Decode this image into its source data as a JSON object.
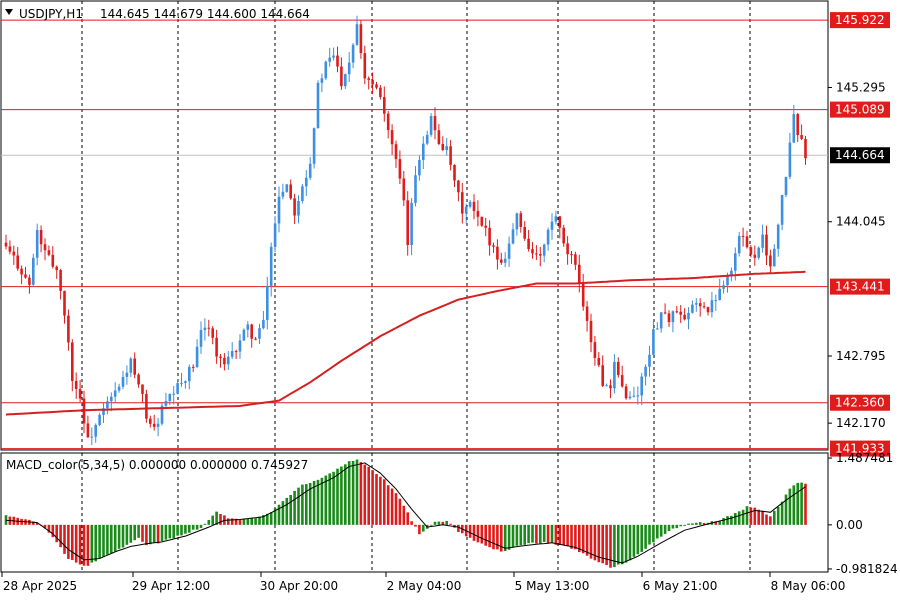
{
  "header": {
    "symbol": "USDJPY,H1",
    "ohlc": "144.645 144.679 144.600 144.664"
  },
  "indicator": {
    "label": "MACD_color(5,34,5) 0.000000 0.000000 0.745927"
  },
  "colors": {
    "bull_candle": "#3d8fe0",
    "bear_candle": "#e01b1b",
    "ma_line": "#d42020",
    "hline": "#e01b1b",
    "hist_up": "#1a8a1a",
    "hist_down": "#e01b1b",
    "signal_line": "#000000",
    "grid": "#000000"
  },
  "chart_data": [
    {
      "type": "candlestick",
      "symbol": "USDJPY",
      "timeframe": "H1",
      "ylim": [
        141.92,
        146.1
      ],
      "price_ticks": [
        "145.295",
        "144.045",
        "142.795",
        "142.170"
      ],
      "price_tags": [
        {
          "value": 145.922,
          "label": "145.922",
          "style": "red"
        },
        {
          "value": 145.089,
          "label": "145.089",
          "style": "red"
        },
        {
          "value": 144.664,
          "label": "144.664",
          "style": "current"
        },
        {
          "value": 143.441,
          "label": "143.441",
          "style": "red"
        },
        {
          "value": 142.36,
          "label": "142.360",
          "style": "red"
        },
        {
          "value": 141.933,
          "label": "141.933",
          "style": "red"
        }
      ],
      "horizontal_lines": [
        145.922,
        145.089,
        143.441,
        142.36,
        141.933
      ],
      "current_price": 144.664,
      "time_labels": [
        "28 Apr 2025",
        "29 Apr 12:00",
        "30 Apr 20:00",
        "2 May 04:00",
        "5 May 13:00",
        "6 May 21:00",
        "8 May 06:00"
      ],
      "grid": "vertical dashed",
      "close_path": [
        [
          0,
          143.8
        ],
        [
          3,
          143.65
        ],
        [
          6,
          143.45
        ],
        [
          8,
          143.95
        ],
        [
          10,
          143.75
        ],
        [
          13,
          143.6
        ],
        [
          15,
          143.2
        ],
        [
          17,
          142.6
        ],
        [
          19,
          142.4
        ],
        [
          21,
          142.0
        ],
        [
          23,
          142.15
        ],
        [
          26,
          142.35
        ],
        [
          29,
          142.5
        ],
        [
          32,
          142.75
        ],
        [
          33,
          142.6
        ],
        [
          35,
          142.4
        ],
        [
          36,
          142.25
        ],
        [
          38,
          142.1
        ],
        [
          40,
          142.3
        ],
        [
          42,
          142.4
        ],
        [
          44,
          142.5
        ],
        [
          46,
          142.6
        ],
        [
          48,
          142.7
        ],
        [
          50,
          143.0
        ],
        [
          52,
          143.1
        ],
        [
          54,
          142.8
        ],
        [
          56,
          142.7
        ],
        [
          58,
          142.8
        ],
        [
          60,
          142.95
        ],
        [
          62,
          143.05
        ],
        [
          64,
          142.95
        ],
        [
          66,
          143.1
        ],
        [
          68,
          143.8
        ],
        [
          70,
          144.3
        ],
        [
          72,
          144.4
        ],
        [
          74,
          144.15
        ],
        [
          76,
          144.4
        ],
        [
          78,
          144.6
        ],
        [
          80,
          145.3
        ],
        [
          82,
          145.5
        ],
        [
          84,
          145.6
        ],
        [
          86,
          145.35
        ],
        [
          88,
          145.55
        ],
        [
          90,
          145.9
        ],
        [
          92,
          145.4
        ],
        [
          94,
          145.35
        ],
        [
          96,
          145.25
        ],
        [
          98,
          144.9
        ],
        [
          100,
          144.6
        ],
        [
          102,
          144.2
        ],
        [
          103,
          143.85
        ],
        [
          105,
          144.5
        ],
        [
          107,
          144.8
        ],
        [
          109,
          145.0
        ],
        [
          111,
          144.8
        ],
        [
          113,
          144.7
        ],
        [
          115,
          144.4
        ],
        [
          117,
          144.15
        ],
        [
          119,
          144.2
        ],
        [
          121,
          144.05
        ],
        [
          123,
          143.95
        ],
        [
          125,
          143.8
        ],
        [
          127,
          143.65
        ],
        [
          129,
          143.85
        ],
        [
          131,
          144.1
        ],
        [
          133,
          143.9
        ],
        [
          135,
          143.75
        ],
        [
          137,
          143.7
        ],
        [
          139,
          143.95
        ],
        [
          141,
          144.1
        ],
        [
          143,
          143.8
        ],
        [
          145,
          143.7
        ],
        [
          147,
          143.5
        ],
        [
          149,
          143.1
        ],
        [
          151,
          142.8
        ],
        [
          153,
          142.55
        ],
        [
          155,
          142.45
        ],
        [
          156,
          142.7
        ],
        [
          158,
          142.5
        ],
        [
          160,
          142.4
        ],
        [
          162,
          142.45
        ],
        [
          164,
          142.7
        ],
        [
          166,
          143.0
        ],
        [
          168,
          143.2
        ],
        [
          170,
          143.15
        ],
        [
          172,
          143.2
        ],
        [
          174,
          143.1
        ],
        [
          176,
          143.25
        ],
        [
          178,
          143.3
        ],
        [
          180,
          143.2
        ],
        [
          182,
          143.35
        ],
        [
          184,
          143.5
        ],
        [
          186,
          143.6
        ],
        [
          188,
          143.9
        ],
        [
          190,
          143.85
        ],
        [
          192,
          143.7
        ],
        [
          194,
          143.95
        ],
        [
          196,
          143.6
        ],
        [
          198,
          144.0
        ],
        [
          200,
          144.5
        ],
        [
          202,
          145.0
        ],
        [
          204,
          144.8
        ],
        [
          205,
          144.664
        ]
      ],
      "ma_path": [
        [
          0,
          142.25
        ],
        [
          20,
          142.29
        ],
        [
          40,
          142.31
        ],
        [
          60,
          142.33
        ],
        [
          70,
          142.38
        ],
        [
          78,
          142.55
        ],
        [
          86,
          142.75
        ],
        [
          96,
          142.98
        ],
        [
          106,
          143.17
        ],
        [
          116,
          143.32
        ],
        [
          126,
          143.4
        ],
        [
          136,
          143.47
        ],
        [
          146,
          143.47
        ],
        [
          160,
          143.5
        ],
        [
          176,
          143.52
        ],
        [
          192,
          143.56
        ],
        [
          206,
          143.58
        ]
      ]
    },
    {
      "type": "histogram",
      "name": "MACD_color(5,34,5)",
      "values_shown": [
        "0.000000",
        "0.000000",
        "0.745927"
      ],
      "ylim": [
        -1.05,
        1.6
      ],
      "ticks": [
        "1.487481",
        "0.00",
        "-0.981824"
      ],
      "hist_path": [
        [
          0,
          0.2
        ],
        [
          4,
          0.15
        ],
        [
          8,
          0.05
        ],
        [
          10,
          -0.05
        ],
        [
          13,
          -0.4
        ],
        [
          16,
          -0.75
        ],
        [
          19,
          -0.88
        ],
        [
          21,
          -0.9
        ],
        [
          24,
          -0.75
        ],
        [
          28,
          -0.6
        ],
        [
          32,
          -0.4
        ],
        [
          34,
          -0.3
        ],
        [
          36,
          -0.45
        ],
        [
          39,
          -0.4
        ],
        [
          42,
          -0.32
        ],
        [
          46,
          -0.2
        ],
        [
          50,
          -0.05
        ],
        [
          54,
          0.28
        ],
        [
          57,
          0.15
        ],
        [
          60,
          0.1
        ],
        [
          64,
          0.15
        ],
        [
          68,
          0.3
        ],
        [
          72,
          0.6
        ],
        [
          76,
          0.9
        ],
        [
          80,
          1.0
        ],
        [
          84,
          1.2
        ],
        [
          88,
          1.4
        ],
        [
          90,
          1.45
        ],
        [
          93,
          1.3
        ],
        [
          97,
          1.0
        ],
        [
          101,
          0.6
        ],
        [
          104,
          0.1
        ],
        [
          106,
          -0.2
        ],
        [
          110,
          0.05
        ],
        [
          113,
          0.1
        ],
        [
          116,
          -0.15
        ],
        [
          120,
          -0.35
        ],
        [
          124,
          -0.5
        ],
        [
          128,
          -0.6
        ],
        [
          131,
          -0.45
        ],
        [
          135,
          -0.4
        ],
        [
          139,
          -0.4
        ],
        [
          143,
          -0.45
        ],
        [
          147,
          -0.6
        ],
        [
          151,
          -0.8
        ],
        [
          155,
          -0.95
        ],
        [
          159,
          -0.85
        ],
        [
          163,
          -0.6
        ],
        [
          167,
          -0.3
        ],
        [
          171,
          -0.1
        ],
        [
          175,
          0.02
        ],
        [
          179,
          0.05
        ],
        [
          183,
          0.1
        ],
        [
          187,
          0.25
        ],
        [
          190,
          0.4
        ],
        [
          193,
          0.35
        ],
        [
          196,
          0.2
        ],
        [
          198,
          0.4
        ],
        [
          201,
          0.8
        ],
        [
          203,
          0.95
        ],
        [
          205,
          0.92
        ]
      ],
      "signal_path": [
        [
          0,
          0.1
        ],
        [
          8,
          0.05
        ],
        [
          12,
          -0.2
        ],
        [
          16,
          -0.55
        ],
        [
          20,
          -0.78
        ],
        [
          24,
          -0.75
        ],
        [
          28,
          -0.6
        ],
        [
          32,
          -0.48
        ],
        [
          36,
          -0.42
        ],
        [
          40,
          -0.38
        ],
        [
          46,
          -0.25
        ],
        [
          52,
          -0.05
        ],
        [
          56,
          0.1
        ],
        [
          60,
          0.12
        ],
        [
          66,
          0.18
        ],
        [
          72,
          0.45
        ],
        [
          78,
          0.8
        ],
        [
          84,
          1.05
        ],
        [
          88,
          1.3
        ],
        [
          92,
          1.38
        ],
        [
          96,
          1.15
        ],
        [
          100,
          0.8
        ],
        [
          104,
          0.35
        ],
        [
          108,
          -0.05
        ],
        [
          112,
          0.0
        ],
        [
          116,
          -0.05
        ],
        [
          122,
          -0.3
        ],
        [
          128,
          -0.52
        ],
        [
          134,
          -0.45
        ],
        [
          140,
          -0.4
        ],
        [
          146,
          -0.5
        ],
        [
          152,
          -0.72
        ],
        [
          158,
          -0.85
        ],
        [
          162,
          -0.7
        ],
        [
          168,
          -0.4
        ],
        [
          174,
          -0.12
        ],
        [
          180,
          0.02
        ],
        [
          186,
          0.15
        ],
        [
          192,
          0.32
        ],
        [
          196,
          0.28
        ],
        [
          200,
          0.55
        ],
        [
          205,
          0.85
        ]
      ]
    }
  ]
}
